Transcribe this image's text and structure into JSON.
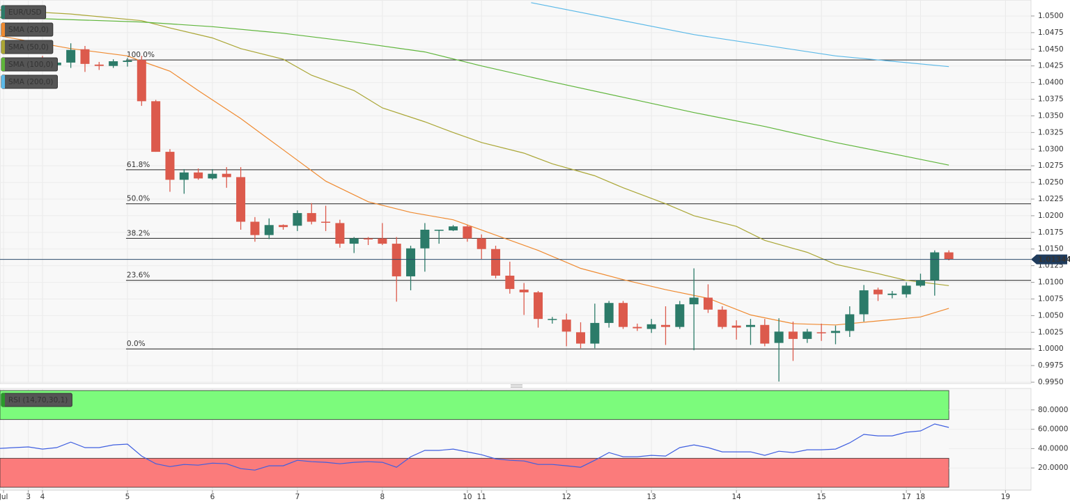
{
  "chart_data": [
    {
      "type": "candlestick",
      "symbol": "EUR/USD",
      "up_color": "#2c7b69",
      "down_color": "#dc5a4c",
      "x": [
        1,
        2,
        3,
        4,
        5,
        6,
        7,
        8,
        9,
        10,
        11,
        12,
        13,
        14,
        15,
        16,
        17,
        18,
        19,
        20,
        21,
        22,
        23,
        24,
        25,
        26,
        27,
        28,
        29,
        30,
        31,
        32,
        33,
        34,
        35,
        36,
        37,
        38,
        39,
        40,
        41,
        42,
        43,
        44,
        45,
        46,
        47,
        48,
        49,
        50,
        51,
        52,
        53,
        54,
        55,
        56,
        57,
        58,
        59,
        60,
        61,
        62,
        63,
        64,
        65,
        66,
        67
      ],
      "open": [
        1.0425,
        1.0428,
        1.043,
        1.0426,
        1.043,
        1.045,
        1.0427,
        1.0425,
        1.0431,
        1.0434,
        1.0372,
        1.0296,
        1.0254,
        1.0265,
        1.0256,
        1.0263,
        1.0258,
        1.0191,
        1.0171,
        1.0186,
        1.0185,
        1.0204,
        1.0191,
        1.0189,
        1.0158,
        1.0166,
        1.0166,
        1.0158,
        1.0109,
        1.0151,
        1.0178,
        1.0178,
        1.0184,
        1.0166,
        1.015,
        1.011,
        1.0089,
        1.0085,
        1.0044,
        1.0044,
        1.0025,
        1.0008,
        1.0039,
        1.0069,
        1.0033,
        1.003,
        1.0036,
        1.0033,
        1.0067,
        1.0077,
        1.0059,
        1.0035,
        1.0033,
        1.0036,
        1.0009,
        1.0026,
        1.0015,
        1.0025,
        1.0024,
        1.0027,
        1.0052,
        1.0089,
        1.0081,
        1.0082,
        1.0095,
        1.0103,
        1.0145
      ],
      "high": [
        1.0435,
        1.0435,
        1.044,
        1.0435,
        1.0459,
        1.0455,
        1.0431,
        1.0435,
        1.0437,
        1.044,
        1.0374,
        1.03,
        1.027,
        1.0271,
        1.027,
        1.0273,
        1.0273,
        1.0198,
        1.0196,
        1.0187,
        1.0208,
        1.0219,
        1.0215,
        1.0194,
        1.0168,
        1.0168,
        1.0189,
        1.0168,
        1.0155,
        1.0189,
        1.0179,
        1.0186,
        1.0186,
        1.0172,
        1.0155,
        1.0131,
        1.0099,
        1.0087,
        1.0048,
        1.0053,
        1.004,
        1.0068,
        1.0072,
        1.0072,
        1.0038,
        1.0045,
        1.0064,
        1.0072,
        1.0121,
        1.0097,
        1.0064,
        1.0043,
        1.0045,
        1.0045,
        1.0046,
        1.0041,
        1.003,
        1.0038,
        1.0035,
        1.0064,
        1.0096,
        1.0092,
        1.0087,
        1.01,
        1.0113,
        1.0148,
        1.0148
      ],
      "low": [
        1.0419,
        1.0419,
        1.0419,
        1.0423,
        1.0422,
        1.0416,
        1.0419,
        1.0422,
        1.0424,
        1.0365,
        1.0296,
        1.0236,
        1.0233,
        1.0254,
        1.0254,
        1.0242,
        1.0179,
        1.0161,
        1.0165,
        1.0179,
        1.0177,
        1.0187,
        1.0177,
        1.0152,
        1.0144,
        1.0156,
        1.0156,
        1.0071,
        1.0088,
        1.0116,
        1.0158,
        1.0177,
        1.0161,
        1.0135,
        1.0106,
        1.0083,
        1.0051,
        1.0032,
        1.0038,
        1.0004,
        1.0001,
        1.0001,
        1.0032,
        1.003,
        1.0027,
        1.0024,
        1.0006,
        1.003,
        0.9998,
        1.0054,
        1.003,
        1.0014,
        1.0006,
        1.0004,
        0.9951,
        0.9982,
        1.0009,
        1.0012,
        1.0007,
        1.0018,
        1.0041,
        1.0072,
        1.0076,
        1.0077,
        1.0093,
        1.008,
        1.0133
      ],
      "close": [
        1.043,
        1.0428,
        1.0425,
        1.043,
        1.0449,
        1.0428,
        1.0425,
        1.0432,
        1.0433,
        1.0372,
        1.0296,
        1.0254,
        1.0265,
        1.0256,
        1.0263,
        1.0258,
        1.0191,
        1.0171,
        1.0186,
        1.0183,
        1.0204,
        1.0191,
        1.019,
        1.0158,
        1.0166,
        1.0165,
        1.0158,
        1.0109,
        1.0151,
        1.0179,
        1.0179,
        1.0184,
        1.0166,
        1.015,
        1.011,
        1.009,
        1.0085,
        1.0045,
        1.0045,
        1.0026,
        1.0008,
        1.0039,
        1.0069,
        1.0033,
        1.0031,
        1.0037,
        1.0033,
        1.0067,
        1.0077,
        1.0059,
        1.0033,
        1.0032,
        1.0036,
        1.0008,
        1.0026,
        1.0015,
        1.0026,
        1.0024,
        1.0027,
        1.0052,
        1.0088,
        1.0082,
        1.0083,
        1.0095,
        1.0103,
        1.0145,
        1.0135
      ],
      "lines": [
        {
          "name": "SMA (20,0)",
          "color": "#ef8a30",
          "x": [
            0,
            5,
            9,
            10,
            12,
            14,
            17,
            20,
            23,
            26,
            29,
            32,
            35,
            38,
            41,
            44,
            47,
            50,
            53,
            56,
            59,
            62,
            65,
            67
          ],
          "values": [
            1.047,
            1.0451,
            1.044,
            1.0432,
            1.0417,
            1.0388,
            1.0346,
            1.0299,
            1.0252,
            1.0221,
            1.0205,
            1.0194,
            1.0171,
            1.0148,
            1.0121,
            1.0104,
            1.0089,
            1.0076,
            1.0051,
            1.0038,
            1.0036,
            1.0042,
            1.0048,
            1.0061
          ]
        },
        {
          "name": "SMA (50,0)",
          "color": "#aaa635",
          "x": [
            0,
            5,
            10,
            12,
            15,
            17,
            20,
            22,
            25,
            27,
            30,
            32,
            34,
            37,
            39,
            42,
            44,
            47,
            49,
            52,
            54,
            57,
            59,
            62,
            64,
            67
          ],
          "values": [
            1.0509,
            1.0503,
            1.0493,
            1.0482,
            1.0467,
            1.0451,
            1.0435,
            1.0411,
            1.0388,
            1.0362,
            1.0341,
            1.0325,
            1.031,
            1.0294,
            1.0278,
            1.026,
            1.0242,
            1.0218,
            1.02,
            1.0184,
            1.0163,
            1.0145,
            1.0127,
            1.0113,
            1.0103,
            1.0095
          ]
        },
        {
          "name": "SMA (100,0)",
          "color": "#5fb53b",
          "x": [
            0,
            10,
            15,
            20,
            25,
            30,
            34,
            39,
            44,
            49,
            54,
            59,
            64,
            67
          ],
          "values": [
            1.0498,
            1.0491,
            1.0484,
            1.0474,
            1.0461,
            1.0446,
            1.0425,
            1.0401,
            1.0378,
            1.0355,
            1.0334,
            1.031,
            1.0289,
            1.0276
          ]
        },
        {
          "name": "SMA (200,0)",
          "color": "#5cb9e8",
          "x": [
            37.5,
            49,
            59,
            67
          ],
          "values": [
            1.052,
            1.0472,
            1.044,
            1.0424
          ]
        }
      ],
      "levels": [
        {
          "label": "100.0%",
          "value": 1.0434
        },
        {
          "label": "61.8%",
          "value": 1.0269
        },
        {
          "label": "50.0%",
          "value": 1.0218
        },
        {
          "label": "38.2%",
          "value": 1.0166
        },
        {
          "label": "23.6%",
          "value": 1.0103
        },
        {
          "label": "0.0%",
          "value": 1.0
        }
      ],
      "levels_start_x": 8.9,
      "last_price": {
        "value": 1.01344,
        "label": "1.01344"
      },
      "xlim": [
        0,
        72.8
      ],
      "xticks": [
        {
          "value": 0.25,
          "label": "Jul"
        },
        {
          "value": 2,
          "label": "3"
        },
        {
          "value": 3,
          "label": "4"
        },
        {
          "value": 9,
          "label": "5"
        },
        {
          "value": 15,
          "label": "6"
        },
        {
          "value": 21,
          "label": "7"
        },
        {
          "value": 27,
          "label": "8"
        },
        {
          "value": 33,
          "label": "10"
        },
        {
          "value": 34,
          "label": "11"
        },
        {
          "value": 40,
          "label": "12"
        },
        {
          "value": 46,
          "label": "13"
        },
        {
          "value": 52,
          "label": "14"
        },
        {
          "value": 58,
          "label": "15"
        },
        {
          "value": 64,
          "label": "17"
        },
        {
          "value": 65,
          "label": "18"
        },
        {
          "value": 71,
          "label": "19"
        }
      ],
      "ylim": [
        0.9949,
        1.0524
      ],
      "yticks": [
        {
          "value": 1.05,
          "label": "1.0500"
        },
        {
          "value": 1.0475,
          "label": "1.0475"
        },
        {
          "value": 1.045,
          "label": "1.0450"
        },
        {
          "value": 1.0425,
          "label": "1.0425"
        },
        {
          "value": 1.04,
          "label": "1.0400"
        },
        {
          "value": 1.0375,
          "label": "1.0375"
        },
        {
          "value": 1.035,
          "label": "1.0350"
        },
        {
          "value": 1.0325,
          "label": "1.0325"
        },
        {
          "value": 1.03,
          "label": "1.0300"
        },
        {
          "value": 1.0275,
          "label": "1.0275"
        },
        {
          "value": 1.025,
          "label": "1.0250"
        },
        {
          "value": 1.0225,
          "label": "1.0225"
        },
        {
          "value": 1.02,
          "label": "1.0200"
        },
        {
          "value": 1.0175,
          "label": "1.0175"
        },
        {
          "value": 1.015,
          "label": "1.0150"
        },
        {
          "value": 1.0125,
          "label": "1.0125"
        },
        {
          "value": 1.01,
          "label": "1.0100"
        },
        {
          "value": 1.0075,
          "label": "1.0075"
        },
        {
          "value": 1.005,
          "label": "1.0050"
        },
        {
          "value": 1.0025,
          "label": "1.0025"
        },
        {
          "value": 1.0,
          "label": "1.0000"
        },
        {
          "value": 0.9975,
          "label": "0.9975"
        },
        {
          "value": 0.995,
          "label": "0.9950"
        }
      ]
    },
    {
      "type": "line",
      "name": "RSI (14,70,30,1)",
      "color": "#3f5fe0",
      "x": [
        0,
        1,
        2,
        3,
        4,
        5,
        6,
        7,
        8,
        9,
        10,
        11,
        12,
        13,
        14,
        15,
        16,
        17,
        18,
        19,
        20,
        21,
        22,
        23,
        24,
        25,
        26,
        27,
        28,
        29,
        30,
        31,
        32,
        33,
        34,
        35,
        36,
        37,
        38,
        39,
        40,
        41,
        42,
        43,
        44,
        45,
        46,
        47,
        48,
        49,
        50,
        51,
        52,
        53,
        54,
        55,
        56,
        57,
        58,
        59,
        60,
        61,
        62,
        63,
        64,
        65,
        66,
        67
      ],
      "values": [
        40.2,
        41.0,
        41.7,
        39.5,
        41.0,
        46.7,
        41.0,
        41.0,
        43.8,
        44.6,
        32.3,
        24.3,
        21.4,
        23.6,
        22.9,
        25.0,
        24.3,
        19.3,
        17.8,
        22.2,
        22.2,
        27.9,
        26.5,
        25.8,
        24.3,
        25.8,
        26.5,
        25.8,
        20.7,
        31.6,
        38.1,
        38.1,
        39.5,
        36.6,
        33.7,
        29.4,
        27.9,
        27.2,
        23.6,
        23.6,
        22.2,
        20.7,
        27.9,
        35.9,
        31.6,
        31.6,
        33.0,
        32.3,
        41.0,
        43.8,
        41.0,
        36.6,
        36.6,
        36.6,
        33.0,
        37.3,
        35.9,
        38.8,
        38.8,
        39.5,
        46.0,
        54.7,
        53.2,
        53.2,
        56.9,
        58.3,
        65.5,
        61.9
      ],
      "zones": [
        {
          "from": 70,
          "to": 100,
          "color": "#7cfb7c"
        },
        {
          "from": 0,
          "to": 30,
          "color": "#fb7b7b"
        }
      ],
      "ylim": [
        0,
        100
      ],
      "yticks": [
        {
          "value": 20,
          "label": "20.0000"
        },
        {
          "value": 40,
          "label": "40.0000"
        },
        {
          "value": 60,
          "label": "60.0000"
        },
        {
          "value": 80,
          "label": "80.0000"
        }
      ]
    }
  ]
}
